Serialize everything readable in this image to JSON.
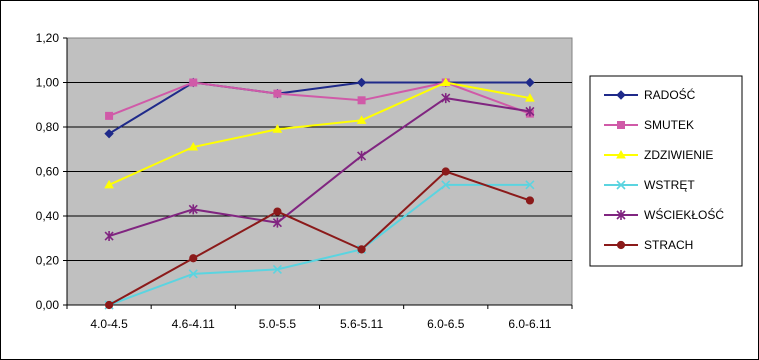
{
  "chart_data": {
    "type": "line",
    "title": "",
    "xlabel": "",
    "ylabel": "",
    "categories": [
      "4.0-4.5",
      "4.6-4.11",
      "5.0-5.5",
      "5.6-5.11",
      "6.0-6.5",
      "6.0-6.11"
    ],
    "ylim": [
      0,
      1.2
    ],
    "yticks": [
      "0,00",
      "0,20",
      "0,40",
      "0,60",
      "0,80",
      "1,00",
      "1,20"
    ],
    "grid": true,
    "plot_background": "#c0c0c0",
    "legend_position": "right",
    "series": [
      {
        "name": "RADOŚĆ",
        "color": "#1f2a8a",
        "marker": "diamond",
        "values": [
          0.77,
          1.0,
          0.95,
          1.0,
          1.0,
          1.0
        ]
      },
      {
        "name": "SMUTEK",
        "color": "#d05aa8",
        "marker": "square",
        "values": [
          0.85,
          1.0,
          0.95,
          0.92,
          1.0,
          0.86
        ]
      },
      {
        "name": "ZDZIWIENIE",
        "color": "#ffff00",
        "marker": "triangle",
        "values": [
          0.54,
          0.71,
          0.79,
          0.83,
          1.0,
          0.93
        ]
      },
      {
        "name": "WSTRĘT",
        "color": "#5bd4e0",
        "marker": "x",
        "values": [
          0.0,
          0.14,
          0.16,
          0.25,
          0.54,
          0.54
        ]
      },
      {
        "name": "WŚCIEKŁOŚĆ",
        "color": "#802580",
        "marker": "star",
        "values": [
          0.31,
          0.43,
          0.37,
          0.67,
          0.93,
          0.87
        ]
      },
      {
        "name": "STRACH",
        "color": "#8b1a1a",
        "marker": "circle",
        "values": [
          0.0,
          0.21,
          0.42,
          0.25,
          0.6,
          0.47
        ]
      }
    ]
  }
}
